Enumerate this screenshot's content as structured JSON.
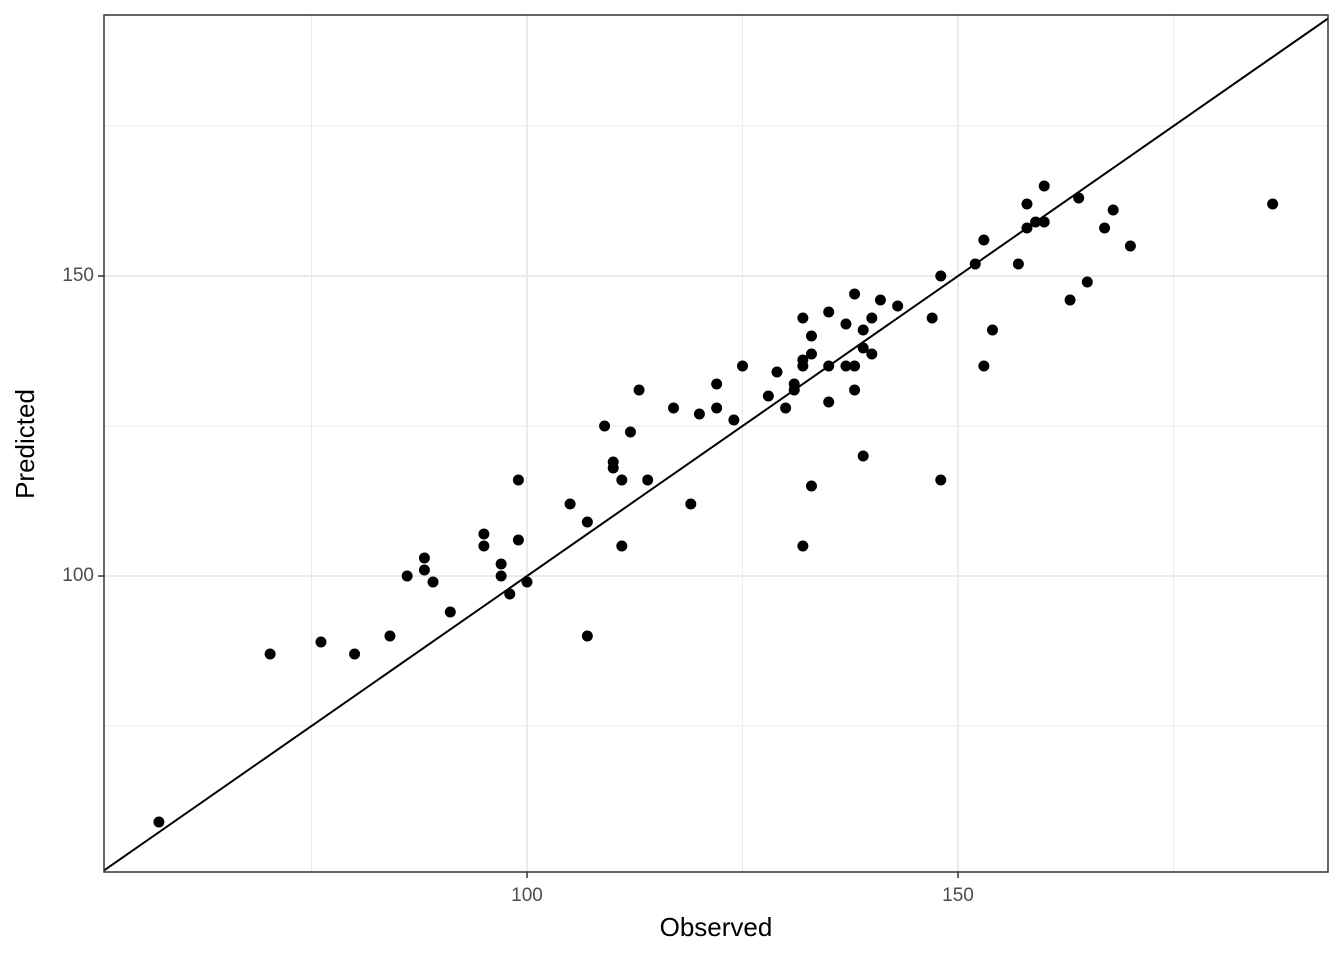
{
  "chart_data": {
    "type": "scatter",
    "x_label": "Observed",
    "y_label": "Predicted",
    "xlim": [
      50.93,
      192.92
    ],
    "ylim": [
      50.67,
      193.5
    ],
    "xticks": [
      100,
      150
    ],
    "yticks": [
      100,
      150
    ],
    "xminor": [
      75,
      125,
      175
    ],
    "yminor": [
      75,
      125,
      175
    ],
    "grid": true,
    "identity_line": true,
    "color": "#000000",
    "x": [
      57.3,
      70.2,
      76.1,
      80.0,
      84.1,
      86.1,
      88.1,
      88.1,
      89.1,
      91.1,
      95.0,
      95.0,
      97.0,
      97.0,
      98.0,
      99.0,
      99.0,
      100,
      105,
      107,
      107,
      109,
      110,
      110,
      111,
      111,
      112,
      113,
      114,
      117,
      119,
      120,
      122,
      122,
      124,
      125,
      128,
      129,
      130,
      131,
      131,
      132,
      132,
      132,
      132,
      133,
      133,
      133,
      135,
      135,
      135,
      137,
      137,
      138,
      138,
      138,
      139,
      139,
      139,
      140,
      140,
      141,
      143,
      147,
      148,
      148,
      152,
      153,
      153,
      154,
      157,
      158,
      158,
      159,
      160,
      160,
      163,
      164,
      165,
      167,
      168,
      170,
      186.5
    ],
    "values": [
      59,
      87,
      89,
      87,
      90,
      100,
      103,
      101,
      99,
      94,
      107,
      105,
      102,
      100,
      97,
      116,
      106,
      99,
      112,
      109,
      90,
      125,
      119,
      118,
      116,
      105,
      124,
      131,
      116,
      128,
      112,
      127,
      132,
      128,
      126,
      135,
      130,
      134,
      128,
      132,
      131,
      143,
      136,
      135,
      105,
      140,
      137,
      115,
      144,
      135,
      129,
      142,
      135,
      147,
      135,
      131,
      141,
      138,
      120,
      143,
      137,
      146,
      145,
      143,
      150,
      116,
      152,
      156,
      135,
      141,
      152,
      162,
      158,
      159,
      165,
      159,
      146,
      163,
      149,
      158,
      161,
      155,
      162
    ]
  }
}
